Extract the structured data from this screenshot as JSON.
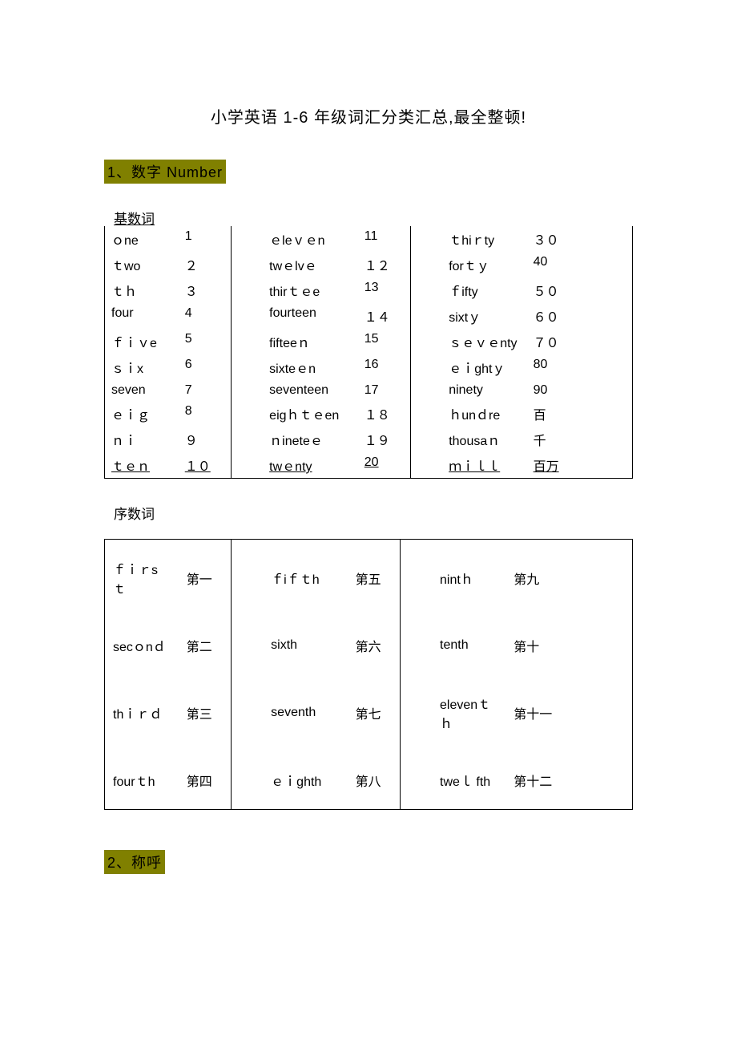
{
  "title": "小学英语 1-6 年级词汇分类汇总,最全整顿!",
  "section1": {
    "heading": "1、数字 Number",
    "cardinal_label": "基数词",
    "ordinal_label": "序数词",
    "cardinal_rows": [
      {
        "w1": "ｏne",
        "n1": "1",
        "w2": "ｅleｖｅn",
        "n2": "11",
        "w3": "ｔhiｒty",
        "n3": "３０"
      },
      {
        "w1": "ｔwo",
        "n1": "２",
        "w2": "twｅlvｅ",
        "n2": "１２",
        "w3": "forｔｙ",
        "n3": "40"
      },
      {
        "w1": "ｔｈ",
        "n1": "３",
        "w2": "thirｔｅe",
        "n2": "13",
        "w3": "ｆifty",
        "n3": "５０"
      },
      {
        "w1": "four",
        "n1": "4",
        "w2": "fourteen",
        "n2": "１４",
        "w3": "sixtｙ",
        "n3": "６０"
      },
      {
        "w1": "ｆｉｖe",
        "n1": "5",
        "w2": "fifteeｎ",
        "n2": "15",
        "w3": "ｓｅｖｅnty",
        "n3": "７０"
      },
      {
        "w1": "ｓｉx",
        "n1": "6",
        "w2": "sixteｅn",
        "n2": "16",
        "w3": "ｅｉghtｙ",
        "n3": "80"
      },
      {
        "w1": "seven",
        "n1": "7",
        "w2": "seventeen",
        "n2": "17",
        "w3": "ninety",
        "n3": "90"
      },
      {
        "w1": "ｅｉｇ",
        "n1": "8",
        "w2": "eigｈｔｅen",
        "n2": "１８",
        "w3": "ｈunｄre",
        "n3": "百"
      },
      {
        "w1": "ｎｉ",
        "n1": "９",
        "w2": "ｎineteｅ",
        "n2": "１９",
        "w3": "thousaｎ",
        "n3": "千"
      },
      {
        "w1": "ｔｅｎ",
        "n1": "１０",
        "w2": "twｅnty",
        "n2": "20",
        "w3": "ｍｉｌｌ",
        "n3": "百万"
      }
    ],
    "ordinal_rows": [
      {
        "w1": "ｆｉｒsｔ",
        "n1": "第一",
        "w2": "ｆiｆｔh",
        "n2": "第五",
        "w3": "nintｈ",
        "n3": "第九"
      },
      {
        "w1": "secｏnｄ",
        "n1": "第二",
        "w2": "sixth",
        "n2": "第六",
        "w3": "tenth",
        "n3": "第十"
      },
      {
        "w1": "thｉｒｄ",
        "n1": "第三",
        "w2": "seventh",
        "n2": "第七",
        "w3": "elevenｔｈ",
        "n3": "第十一"
      },
      {
        "w1": "fourｔh",
        "n1": "第四",
        "w2": "ｅｉghth",
        "n2": "第八",
        "w3": "tweｌ fth",
        "n3": "第十二"
      }
    ]
  },
  "section2": {
    "heading": "2、称呼"
  },
  "colors": {
    "highlight_bg": "#808000",
    "text": "#000000",
    "bg": "#ffffff"
  }
}
